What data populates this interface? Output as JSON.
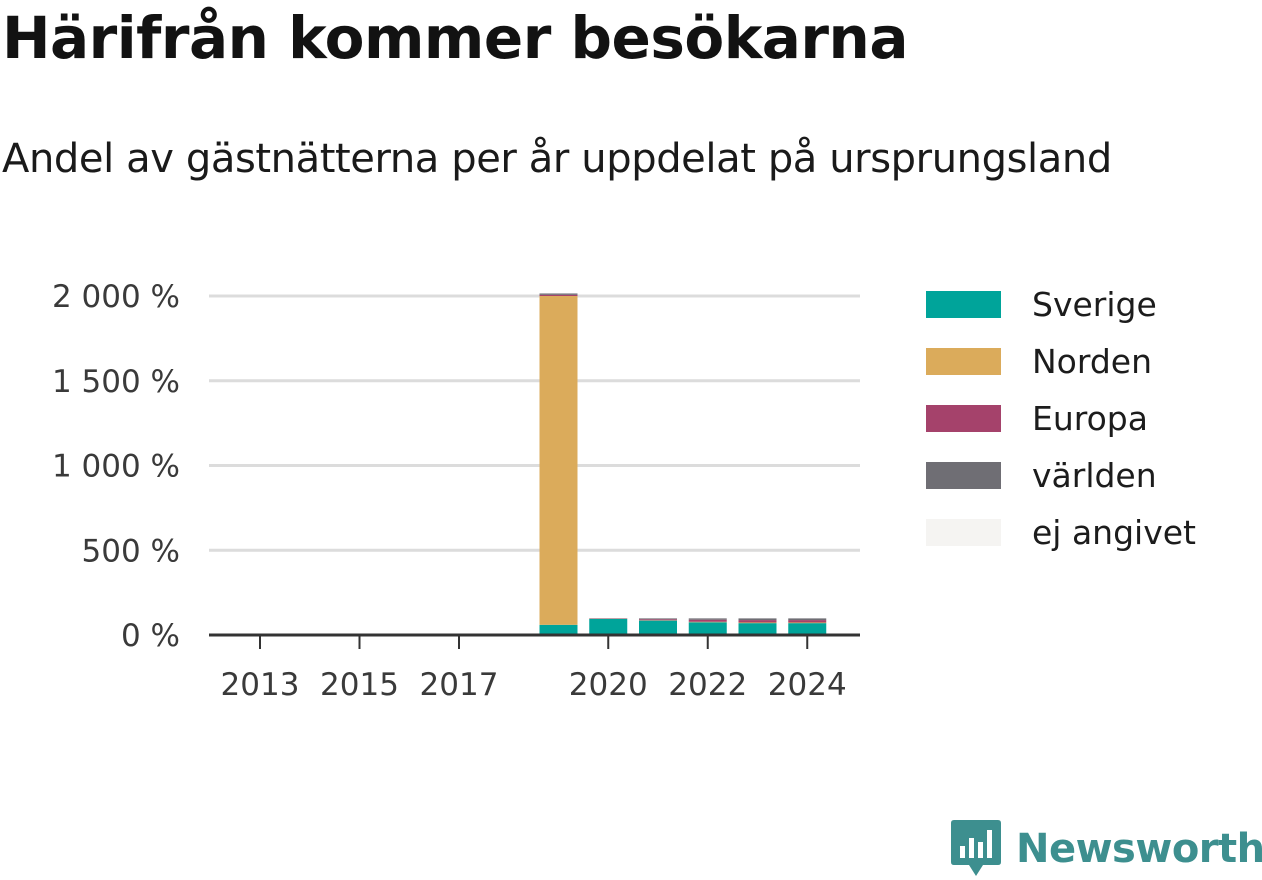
{
  "header": {
    "title": "Härifrån kommer besökarna",
    "subtitle": "Andel av gästnätterna per år uppdelat på ursprungsland"
  },
  "chart_data": {
    "type": "bar",
    "stacked": true,
    "x": [
      2013,
      2014,
      2015,
      2016,
      2017,
      2018,
      2019,
      2020,
      2021,
      2022,
      2023,
      2024
    ],
    "x_tick_labels": [
      "2013",
      "2015",
      "2017",
      "2020",
      "2022",
      "2024"
    ],
    "y_ticks": [
      0,
      500,
      1000,
      1500,
      2000
    ],
    "y_tick_labels": [
      "0 %",
      "500 %",
      "1 000 %",
      "1 500 %",
      "2 000 %"
    ],
    "ylim": [
      0,
      2000
    ],
    "grid": true,
    "legend_position": "right",
    "series": [
      {
        "name": "Sverige",
        "color": "#00a49a",
        "values": [
          null,
          null,
          null,
          null,
          null,
          null,
          60,
          95,
          85,
          75,
          70,
          70
        ]
      },
      {
        "name": "Norden",
        "color": "#dbab5b",
        "values": [
          null,
          null,
          null,
          null,
          null,
          null,
          1940,
          1,
          2,
          3,
          4,
          4
        ]
      },
      {
        "name": "Europa",
        "color": "#a5426b",
        "values": [
          null,
          null,
          null,
          null,
          null,
          null,
          7,
          2,
          6,
          12,
          14,
          14
        ]
      },
      {
        "name": "världen",
        "color": "#6f6e74",
        "values": [
          null,
          null,
          null,
          null,
          null,
          null,
          8,
          1,
          5,
          8,
          10,
          10
        ]
      },
      {
        "name": "ej angivet",
        "color": "#f5f4f2",
        "values": [
          null,
          null,
          null,
          null,
          null,
          null,
          0,
          0,
          0,
          0,
          0,
          0
        ]
      }
    ]
  },
  "brand": {
    "name": "Newsworthy",
    "icon": "chart-speech-bubble-icon",
    "color": "#3d8f8f"
  }
}
